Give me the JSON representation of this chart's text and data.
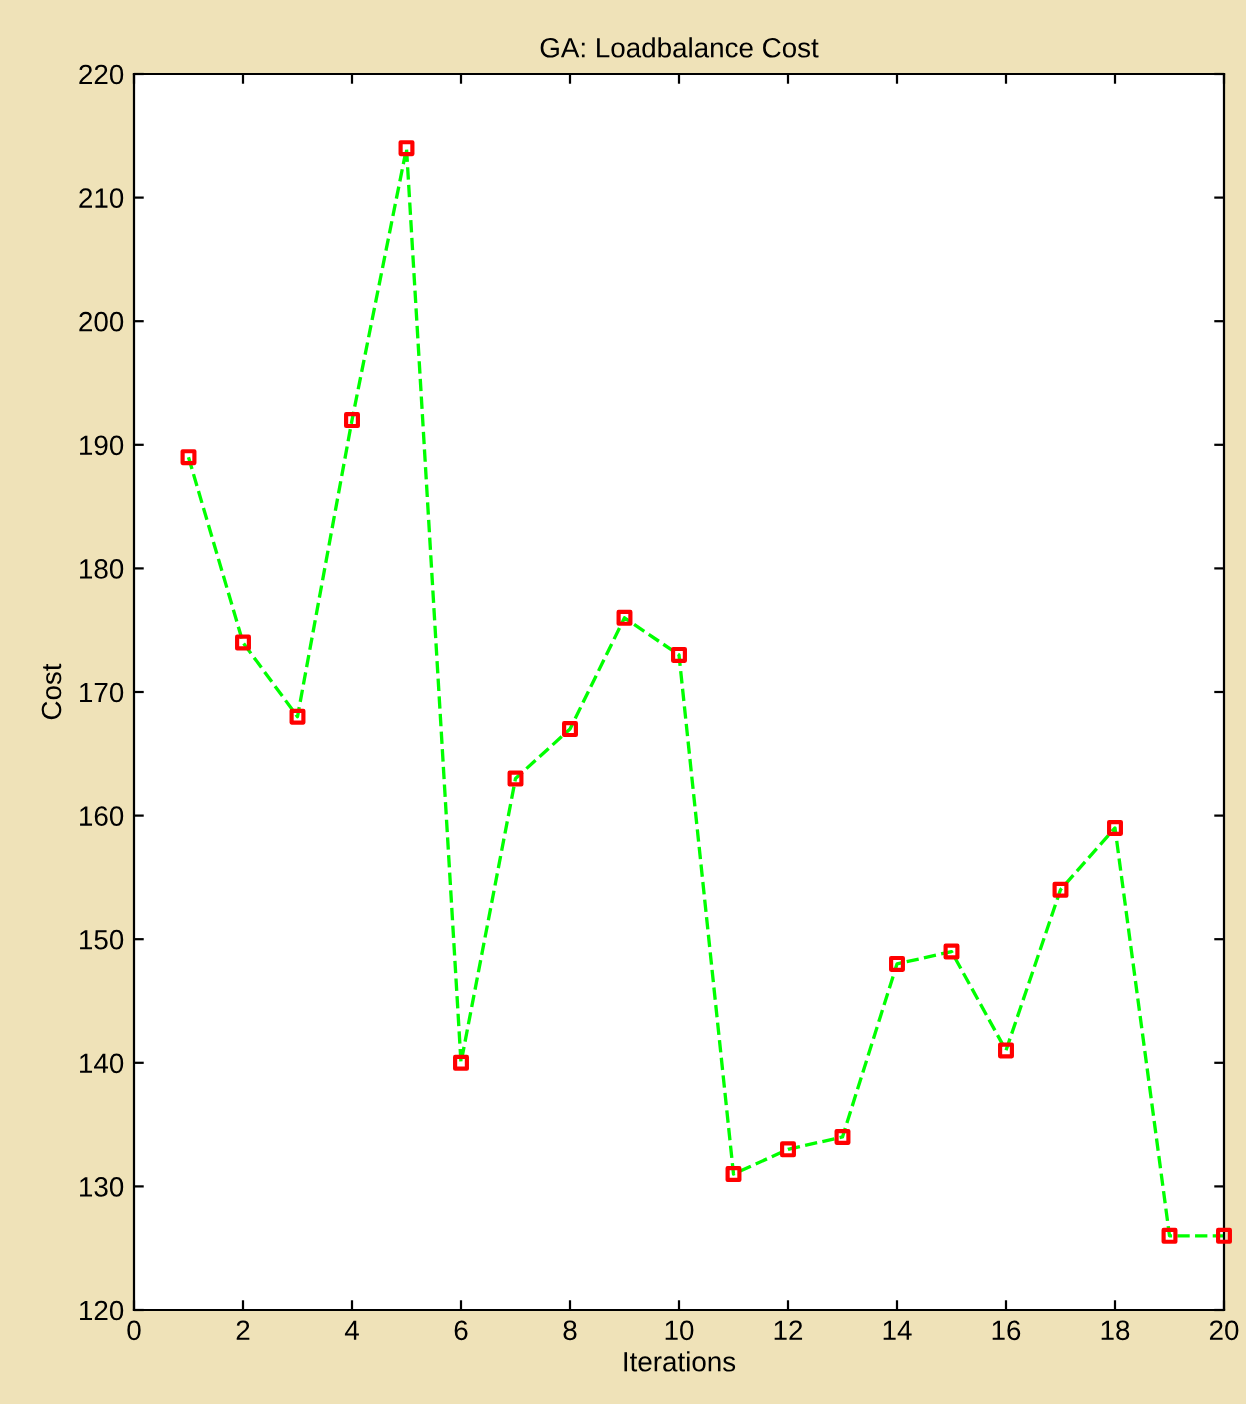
{
  "chart_data": {
    "type": "line",
    "title": "GA: Loadbalance Cost",
    "xlabel": "Iterations",
    "ylabel": "Cost",
    "x": [
      1,
      2,
      3,
      4,
      5,
      6,
      7,
      8,
      9,
      10,
      11,
      12,
      13,
      14,
      15,
      16,
      17,
      18,
      19,
      20
    ],
    "series": [
      {
        "color": "#00ff00",
        "colors": [
          "#ff0000",
          "#ff0000",
          "#ff0000",
          "#ff0000",
          "#ff0000",
          "#ff0000",
          "#ff0000",
          "#ff0000",
          "#ff0000",
          "#ff0000",
          "#ff0000",
          "#ff0000",
          "#ff0000",
          "#ff0000",
          "#ff0000",
          "#ff0000",
          "#ff0000",
          "#ff0000",
          "#ff0000",
          "#ff0000"
        ],
        "values": [
          189,
          174,
          168,
          192,
          214,
          140,
          163,
          167,
          176,
          173,
          131,
          133,
          134,
          148,
          149,
          141,
          154,
          159,
          126,
          126
        ]
      }
    ],
    "xlim": [
      0,
      20
    ],
    "xticks": [
      0,
      2,
      4,
      6,
      8,
      10,
      12,
      14,
      16,
      18,
      20
    ],
    "ylim": [
      120,
      220
    ],
    "yticks": [
      120,
      130,
      140,
      150,
      160,
      170,
      180,
      190,
      200,
      210,
      220
    ],
    "marker": "square",
    "line_style": "dashed",
    "grid": false,
    "legend": false
  }
}
